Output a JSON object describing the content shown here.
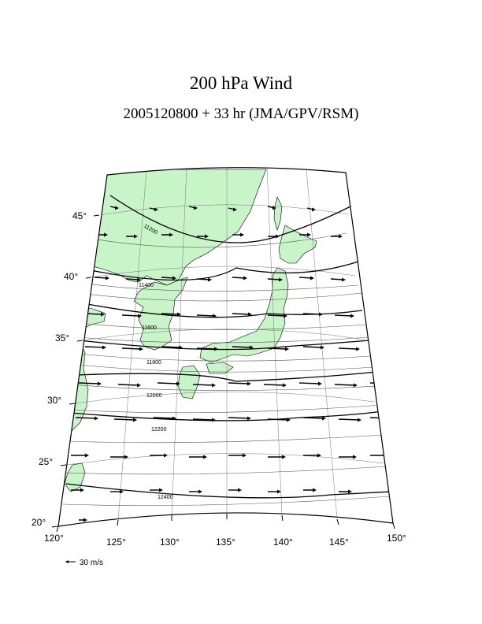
{
  "title": "200 hPa Wind",
  "subtitle": "2005120800 + 33 hr (JMA/GPV/RSM)",
  "map": {
    "lon_ticks": [
      "120°",
      "125°",
      "130°",
      "135°",
      "140°",
      "145°",
      "150°"
    ],
    "lat_ticks": [
      "20°",
      "25°",
      "30°",
      "35°",
      "40°",
      "45°"
    ],
    "contour_labels": [
      "11200",
      "11400",
      "11600",
      "11800",
      "12000",
      "12200",
      "12400"
    ],
    "land_color": "#c8f5c8",
    "wind_legend": "30 m/s"
  }
}
